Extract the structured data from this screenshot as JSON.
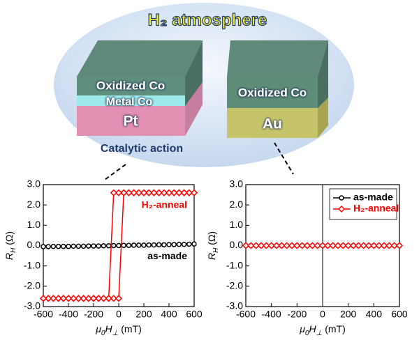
{
  "diagram": {
    "title": "H₂ atmosphere",
    "left_stack": [
      "Oxidized Co",
      "Metal Co",
      "Pt"
    ],
    "left_note": "Catalytic action",
    "right_stack": [
      "Oxidized Co",
      "Au"
    ]
  },
  "chart_data": [
    {
      "type": "line",
      "xlabel": [
        "μ",
        "0",
        "H",
        "⊥",
        " (mT)"
      ],
      "ylabel": [
        "R",
        "H",
        " (Ω)"
      ],
      "legend": "inline",
      "xlim": [
        -600,
        600
      ],
      "xticks": [
        -600,
        -400,
        -200,
        0,
        200,
        400,
        600
      ],
      "ylim": [
        -3,
        3
      ],
      "yticks": [
        {
          "value": -3,
          "label": "-3.0"
        },
        {
          "value": -2,
          "label": "-2.0"
        },
        {
          "value": -1,
          "label": "-1.0"
        },
        {
          "value": 0,
          "label": "0.0"
        },
        {
          "value": 1,
          "label": "1.0"
        },
        {
          "value": 2,
          "label": "2.0"
        },
        {
          "value": 3,
          "label": "3.0"
        }
      ],
      "series": [
        {
          "name": "as-made",
          "color": "#000000",
          "marker": "circle",
          "x": [
            -600,
            -560,
            -520,
            -480,
            -440,
            -400,
            -360,
            -320,
            -280,
            -240,
            -200,
            -160,
            -120,
            -80,
            -40,
            0,
            40,
            80,
            120,
            160,
            200,
            240,
            280,
            320,
            360,
            400,
            440,
            480,
            520,
            560,
            600
          ],
          "values": [
            -0.05,
            -0.05,
            -0.04,
            -0.04,
            -0.04,
            -0.04,
            -0.03,
            -0.03,
            -0.03,
            -0.02,
            -0.02,
            -0.02,
            -0.01,
            -0.01,
            0,
            0,
            0.01,
            0.01,
            0.02,
            0.02,
            0.02,
            0.03,
            0.03,
            0.04,
            0.04,
            0.05,
            0.05,
            0.06,
            0.06,
            0.07,
            0.08
          ]
        },
        {
          "name": "H₂-anneal",
          "color": "#ff0000",
          "marker": "diamond",
          "x": [
            -600,
            -560,
            -520,
            -480,
            -440,
            -400,
            -360,
            -320,
            -280,
            -240,
            -200,
            -160,
            -120,
            -80,
            -40,
            0,
            40,
            80,
            120,
            160,
            200,
            240,
            280,
            320,
            360,
            400,
            440,
            480,
            520,
            560,
            600,
            600,
            560,
            520,
            480,
            440,
            400,
            360,
            320,
            280,
            240,
            200,
            160,
            120,
            80,
            40,
            0,
            -40,
            -80,
            -120,
            -160,
            -200,
            -240,
            -280,
            -320,
            -360,
            -400,
            -440,
            -480,
            -520,
            -560,
            -600
          ],
          "values": [
            -2.6,
            -2.6,
            -2.6,
            -2.6,
            -2.6,
            -2.6,
            -2.6,
            -2.6,
            -2.6,
            -2.6,
            -2.6,
            -2.6,
            -2.6,
            -2.6,
            -2.6,
            -2.6,
            2.6,
            2.6,
            2.6,
            2.6,
            2.6,
            2.6,
            2.6,
            2.6,
            2.6,
            2.6,
            2.6,
            2.6,
            2.6,
            2.6,
            2.6,
            2.6,
            2.6,
            2.6,
            2.6,
            2.6,
            2.6,
            2.6,
            2.6,
            2.6,
            2.6,
            2.6,
            2.6,
            2.6,
            2.6,
            2.6,
            2.6,
            2.6,
            -2.6,
            -2.6,
            -2.6,
            -2.6,
            -2.6,
            -2.6,
            -2.6,
            -2.6,
            -2.6,
            -2.6,
            -2.6,
            -2.6,
            -2.6,
            -2.6
          ]
        }
      ]
    },
    {
      "type": "line",
      "xlabel": [
        "μ",
        "0",
        "H",
        "⊥",
        " (mT)"
      ],
      "ylabel": [
        "R",
        "H",
        " (Ω)"
      ],
      "legend": "upper right",
      "vlines": [
        0
      ],
      "xlim": [
        -600,
        600
      ],
      "xticks": [
        -600,
        -400,
        -200,
        0,
        200,
        400,
        600
      ],
      "ylim": [
        -3,
        3
      ],
      "yticks": [
        {
          "value": -3,
          "label": "-3.0"
        },
        {
          "value": -2,
          "label": "-2.0"
        },
        {
          "value": -1,
          "label": "-1.0"
        },
        {
          "value": 0,
          "label": "0.0"
        },
        {
          "value": 1,
          "label": "1.0"
        },
        {
          "value": 2,
          "label": "2.0"
        },
        {
          "value": 3,
          "label": "3.0"
        }
      ],
      "series": [
        {
          "name": "as-made",
          "color": "#000000",
          "marker": "circle",
          "x": [
            -600,
            -560,
            -520,
            -480,
            -440,
            -400,
            -360,
            -320,
            -280,
            -240,
            -200,
            -160,
            -120,
            -80,
            -40,
            0,
            40,
            80,
            120,
            160,
            200,
            240,
            280,
            320,
            360,
            400,
            440,
            480,
            520,
            560,
            600
          ],
          "values": [
            0,
            0,
            0,
            0,
            0,
            0,
            0,
            0,
            0,
            0,
            0,
            0,
            0,
            0,
            0,
            0,
            0,
            0,
            0,
            0,
            0,
            0,
            0,
            0,
            0,
            0,
            0,
            0,
            0,
            0,
            0
          ]
        },
        {
          "name": "H₂-anneal",
          "color": "#ff0000",
          "marker": "diamond",
          "x": [
            -600,
            -560,
            -520,
            -480,
            -440,
            -400,
            -360,
            -320,
            -280,
            -240,
            -200,
            -160,
            -120,
            -80,
            -40,
            0,
            40,
            80,
            120,
            160,
            200,
            240,
            280,
            320,
            360,
            400,
            440,
            480,
            520,
            560,
            600
          ],
          "values": [
            0,
            0,
            0,
            0,
            0,
            0,
            0,
            0,
            0,
            0,
            0,
            0,
            0,
            0,
            0,
            0,
            0,
            0,
            0,
            0,
            0,
            0,
            0,
            0,
            0,
            0,
            0,
            0,
            0,
            0,
            0
          ]
        }
      ]
    }
  ]
}
